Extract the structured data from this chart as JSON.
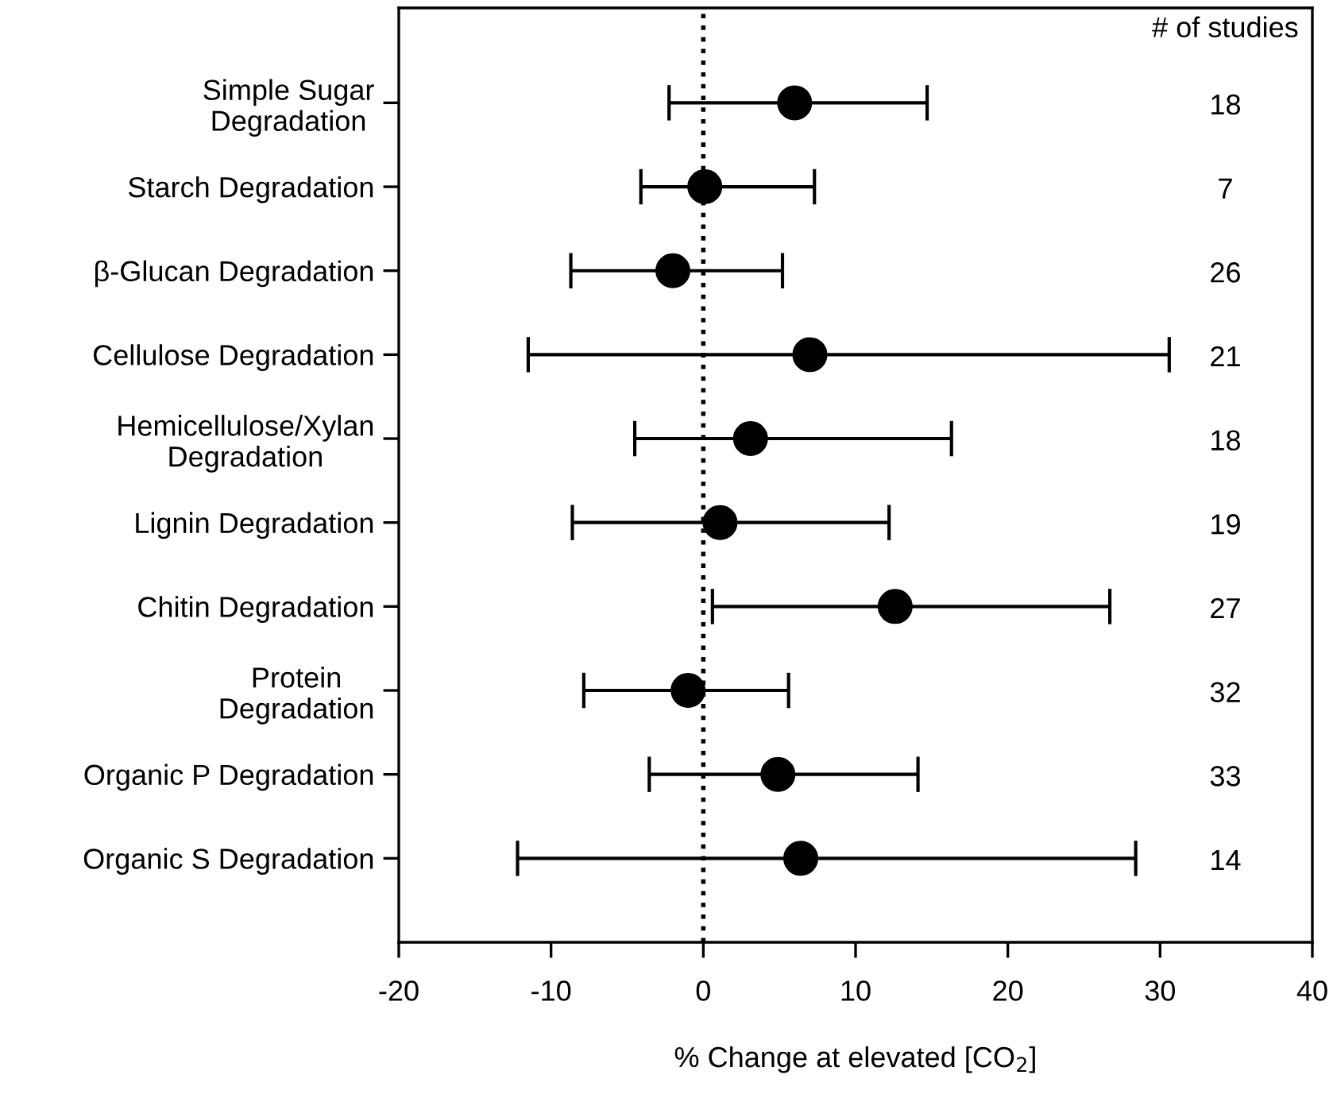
{
  "chart_data": {
    "type": "scatter",
    "orientation": "horizontal",
    "categories": [
      "Simple Sugar\nDegradation",
      "Starch Degradation",
      "β-Glucan Degradation",
      "Cellulose Degradation",
      "Hemicellulose/Xylan\nDegradation",
      "Lignin Degradation",
      "Chitin Degradation",
      "Protein\nDegradation",
      "Organic P Degradation",
      "Organic S Degradation"
    ],
    "series": [
      {
        "color": "#000000",
        "values": [
          6.0,
          0.1,
          -2.0,
          7.0,
          3.1,
          1.1,
          12.6,
          -1.0,
          4.9,
          6.4
        ],
        "errors": [
          [
            -2.25,
            14.7
          ],
          [
            -4.1,
            7.3
          ],
          [
            -8.7,
            5.2
          ],
          [
            -11.5,
            30.6
          ],
          [
            -4.5,
            16.3
          ],
          [
            -8.6,
            12.2
          ],
          [
            0.6,
            26.7
          ],
          [
            -7.85,
            5.6
          ],
          [
            -3.55,
            14.1
          ],
          [
            -12.2,
            28.4
          ]
        ]
      }
    ],
    "xlim": [
      -20,
      40
    ],
    "xticks": [
      -20,
      -10,
      0,
      10,
      20,
      30,
      40
    ],
    "xlabel": "% Change at elevated [CO$_{2}$]",
    "marker": "circle",
    "grid": false,
    "legend": false,
    "ref_lines": [
      {
        "axis": "x",
        "value": 0,
        "line_style": "dotted",
        "color": "#000000"
      }
    ],
    "annotations": [
      "# of studies",
      "18",
      "7",
      "26",
      "21",
      "18",
      "19",
      "27",
      "32",
      "33",
      "14"
    ]
  }
}
